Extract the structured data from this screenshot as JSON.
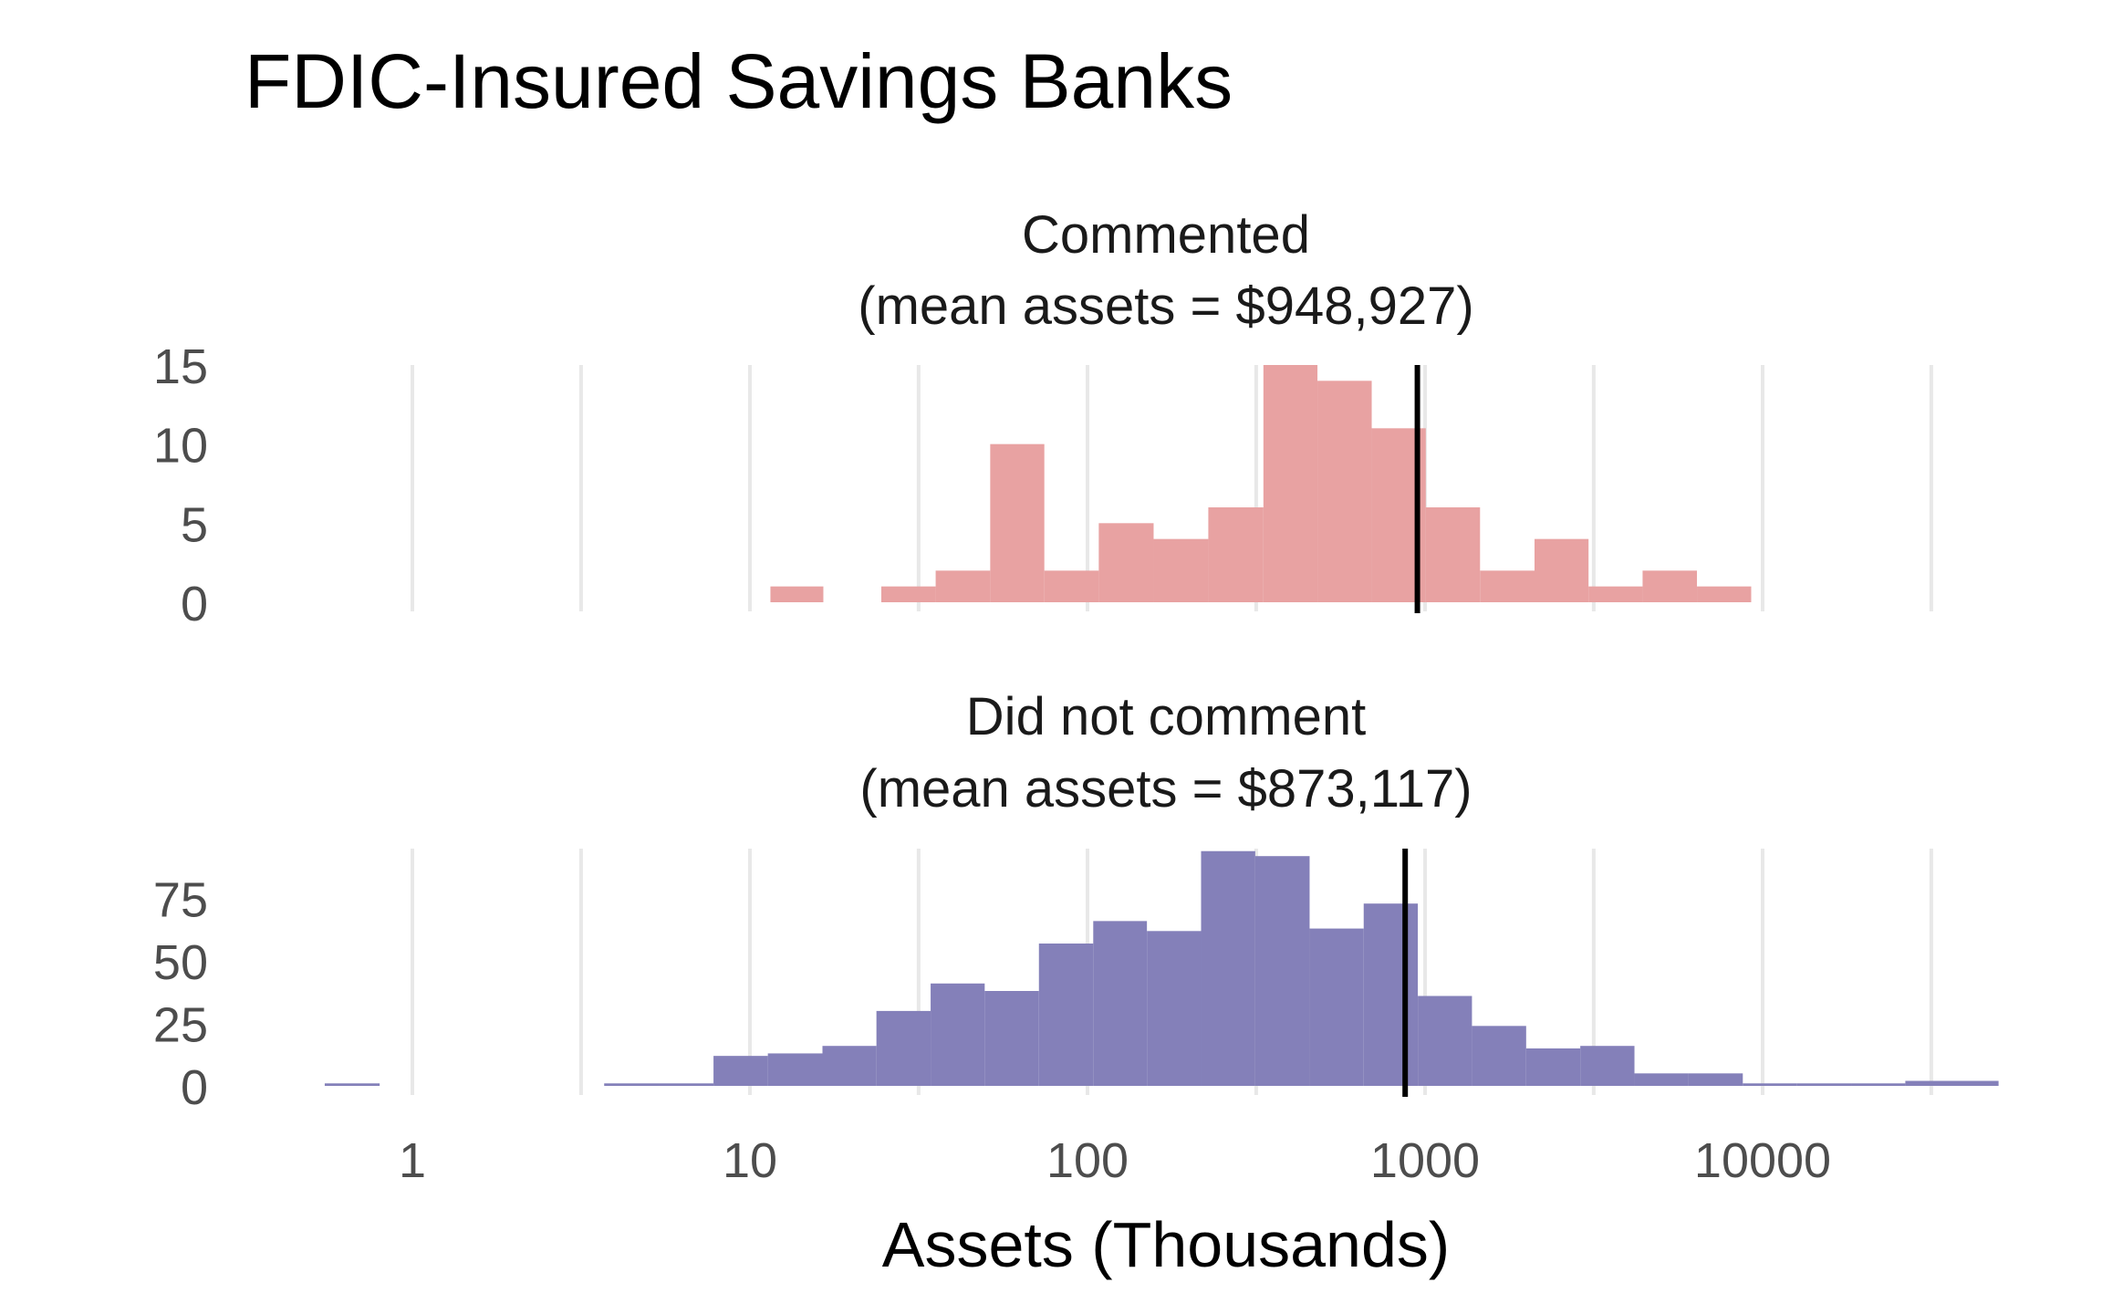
{
  "chart_data": {
    "type": "histogram",
    "title": "FDIC-Insured Savings Banks",
    "xlabel": "Assets (Thousands)",
    "x_scale": "log10",
    "xlim": [
      0.5,
      50000
    ],
    "x_ticks": [
      "1",
      "10",
      "100",
      "1000",
      "10000"
    ],
    "x_tick_values": [
      1,
      10,
      100,
      1000,
      10000
    ],
    "grid": true,
    "panels": [
      {
        "name": "Commented",
        "title_line1": "Commented",
        "title_line2": "(mean assets = $948,927)",
        "color": "#E8A2A2",
        "ylim": [
          0,
          15
        ],
        "y_ticks": [
          "0",
          "5",
          "10",
          "15"
        ],
        "y_tick_values": [
          0,
          5,
          10,
          15
        ],
        "mean": 948.927,
        "bins": [
          {
            "x0": 11.5,
            "x1": 16.5,
            "count": 1
          },
          {
            "x0": 24.5,
            "x1": 35.5,
            "count": 1
          },
          {
            "x0": 35.5,
            "x1": 51.5,
            "count": 2
          },
          {
            "x0": 51.5,
            "x1": 74.5,
            "count": 10
          },
          {
            "x0": 74.5,
            "x1": 108,
            "count": 2
          },
          {
            "x0": 108,
            "x1": 157,
            "count": 5
          },
          {
            "x0": 157,
            "x1": 228,
            "count": 4
          },
          {
            "x0": 228,
            "x1": 332,
            "count": 6
          },
          {
            "x0": 332,
            "x1": 480,
            "count": 15
          },
          {
            "x0": 480,
            "x1": 695,
            "count": 14
          },
          {
            "x0": 695,
            "x1": 1005,
            "count": 11
          },
          {
            "x0": 1005,
            "x1": 1455,
            "count": 6
          },
          {
            "x0": 1455,
            "x1": 2110,
            "count": 2
          },
          {
            "x0": 2110,
            "x1": 3050,
            "count": 4
          },
          {
            "x0": 3050,
            "x1": 4410,
            "count": 1
          },
          {
            "x0": 4410,
            "x1": 6390,
            "count": 2
          },
          {
            "x0": 6390,
            "x1": 9250,
            "count": 1
          }
        ]
      },
      {
        "name": "Did not comment",
        "title_line1": "Did not comment",
        "title_line2": "(mean assets = $873,117)",
        "color": "#8480B9",
        "ylim": [
          0,
          95
        ],
        "y_ticks": [
          "0",
          "25",
          "50",
          "75"
        ],
        "y_tick_values": [
          0,
          25,
          50,
          75
        ],
        "mean": 873.117,
        "bins": [
          {
            "x0": 0.55,
            "x1": 0.8,
            "count": 1
          },
          {
            "x0": 3.7,
            "x1": 5.4,
            "count": 1
          },
          {
            "x0": 5.4,
            "x1": 7.8,
            "count": 1
          },
          {
            "x0": 7.8,
            "x1": 11.3,
            "count": 12
          },
          {
            "x0": 11.3,
            "x1": 16.4,
            "count": 13
          },
          {
            "x0": 16.4,
            "x1": 23.7,
            "count": 16
          },
          {
            "x0": 23.7,
            "x1": 34.3,
            "count": 30
          },
          {
            "x0": 34.3,
            "x1": 49.6,
            "count": 41
          },
          {
            "x0": 49.6,
            "x1": 71.8,
            "count": 38
          },
          {
            "x0": 71.8,
            "x1": 104,
            "count": 57
          },
          {
            "x0": 104,
            "x1": 150,
            "count": 66
          },
          {
            "x0": 150,
            "x1": 217,
            "count": 62
          },
          {
            "x0": 217,
            "x1": 314,
            "count": 94
          },
          {
            "x0": 314,
            "x1": 455,
            "count": 92
          },
          {
            "x0": 455,
            "x1": 658,
            "count": 63
          },
          {
            "x0": 658,
            "x1": 952,
            "count": 73
          },
          {
            "x0": 952,
            "x1": 1377,
            "count": 36
          },
          {
            "x0": 1377,
            "x1": 1993,
            "count": 24
          },
          {
            "x0": 1993,
            "x1": 2883,
            "count": 15
          },
          {
            "x0": 2883,
            "x1": 4172,
            "count": 16
          },
          {
            "x0": 4172,
            "x1": 6037,
            "count": 5
          },
          {
            "x0": 6037,
            "x1": 8736,
            "count": 5
          },
          {
            "x0": 8736,
            "x1": 12640,
            "count": 1
          },
          {
            "x0": 12640,
            "x1": 18290,
            "count": 1
          },
          {
            "x0": 18290,
            "x1": 26470,
            "count": 1
          },
          {
            "x0": 26470,
            "x1": 50000,
            "count": 2
          }
        ]
      }
    ]
  }
}
